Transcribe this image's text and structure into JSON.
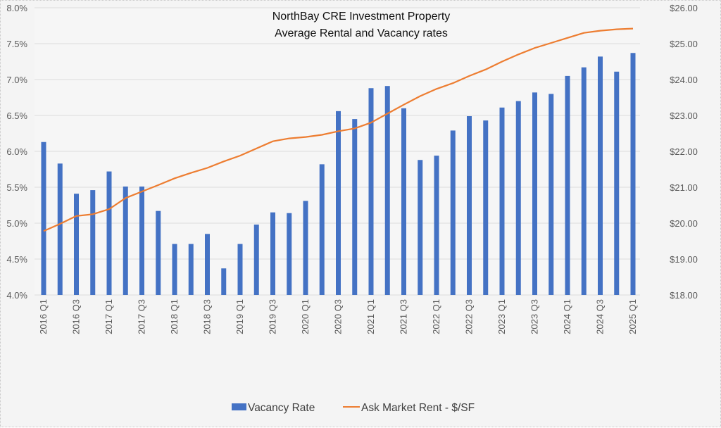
{
  "chart_data": {
    "type": "bar+line",
    "title": "NorthBay CRE Investment Property",
    "subtitle": "Average Rental and Vacancy rates",
    "categories": [
      "2016 Q1",
      "2016 Q2",
      "2016 Q3",
      "2016 Q4",
      "2017 Q1",
      "2017 Q2",
      "2017 Q3",
      "2017 Q4",
      "2018 Q1",
      "2018 Q2",
      "2018 Q3",
      "2018 Q4",
      "2019 Q1",
      "2019 Q2",
      "2019 Q3",
      "2019 Q4",
      "2020 Q1",
      "2020 Q2",
      "2020 Q3",
      "2020 Q4",
      "2021 Q1",
      "2021 Q2",
      "2021 Q3",
      "2021 Q4",
      "2022 Q1",
      "2022 Q2",
      "2022 Q3",
      "2022 Q4",
      "2023 Q1",
      "2023 Q2",
      "2023 Q3",
      "2023 Q4",
      "2024 Q1",
      "2024 Q2",
      "2024 Q3",
      "2024 Q4",
      "2025 Q1"
    ],
    "x_tick_labels": [
      "2016 Q1",
      "2016 Q3",
      "2017 Q1",
      "2017 Q3",
      "2018 Q1",
      "2018 Q3",
      "2019 Q1",
      "2019 Q3",
      "2020 Q1",
      "2020 Q3",
      "2021 Q1",
      "2021 Q3",
      "2022 Q1",
      "2022 Q3",
      "2023 Q1",
      "2023 Q3",
      "2024 Q1",
      "2024 Q3",
      "2025 Q1"
    ],
    "series": [
      {
        "name": "Vacancy Rate",
        "type": "bar",
        "axis": "left",
        "color": "#4472c4",
        "unit": "%",
        "values": [
          6.13,
          5.83,
          5.41,
          5.46,
          5.72,
          5.51,
          5.51,
          5.17,
          4.71,
          4.71,
          4.85,
          4.37,
          4.71,
          4.98,
          5.15,
          5.14,
          5.31,
          5.82,
          6.56,
          6.45,
          6.88,
          6.91,
          6.6,
          5.88,
          5.94,
          6.29,
          6.49,
          6.43,
          6.61,
          6.7,
          6.82,
          6.8,
          7.05,
          7.17,
          7.32,
          7.11,
          7.37
        ]
      },
      {
        "name": "Ask Market Rent - $/SF",
        "type": "line",
        "axis": "right",
        "color": "#ed7d31",
        "unit": "$/SF",
        "values": [
          19.78,
          19.98,
          20.2,
          20.25,
          20.39,
          20.7,
          20.88,
          21.06,
          21.25,
          21.4,
          21.54,
          21.72,
          21.88,
          22.08,
          22.28,
          22.36,
          22.4,
          22.46,
          22.56,
          22.64,
          22.8,
          23.05,
          23.3,
          23.54,
          23.74,
          23.9,
          24.1,
          24.28,
          24.5,
          24.7,
          24.88,
          25.02,
          25.16,
          25.3,
          25.36,
          25.4,
          25.42
        ]
      }
    ],
    "y_left": {
      "ylim": [
        4.0,
        8.0
      ],
      "ticks": [
        "4.0%",
        "4.5%",
        "5.0%",
        "5.5%",
        "6.0%",
        "6.5%",
        "7.0%",
        "7.5%",
        "8.0%"
      ],
      "tick_values": [
        4.0,
        4.5,
        5.0,
        5.5,
        6.0,
        6.5,
        7.0,
        7.5,
        8.0
      ]
    },
    "y_right": {
      "ylim": [
        18,
        26
      ],
      "ticks": [
        "$18.00",
        "$19.00",
        "$20.00",
        "$21.00",
        "$22.00",
        "$23.00",
        "$24.00",
        "$25.00",
        "$26.00"
      ],
      "tick_values": [
        18,
        19,
        20,
        21,
        22,
        23,
        24,
        25,
        26
      ]
    },
    "grid": true,
    "legend": {
      "position": "bottom",
      "items": [
        "Vacancy Rate",
        "Ask Market Rent - $/SF"
      ]
    },
    "xlabel": "",
    "ylabel": ""
  }
}
